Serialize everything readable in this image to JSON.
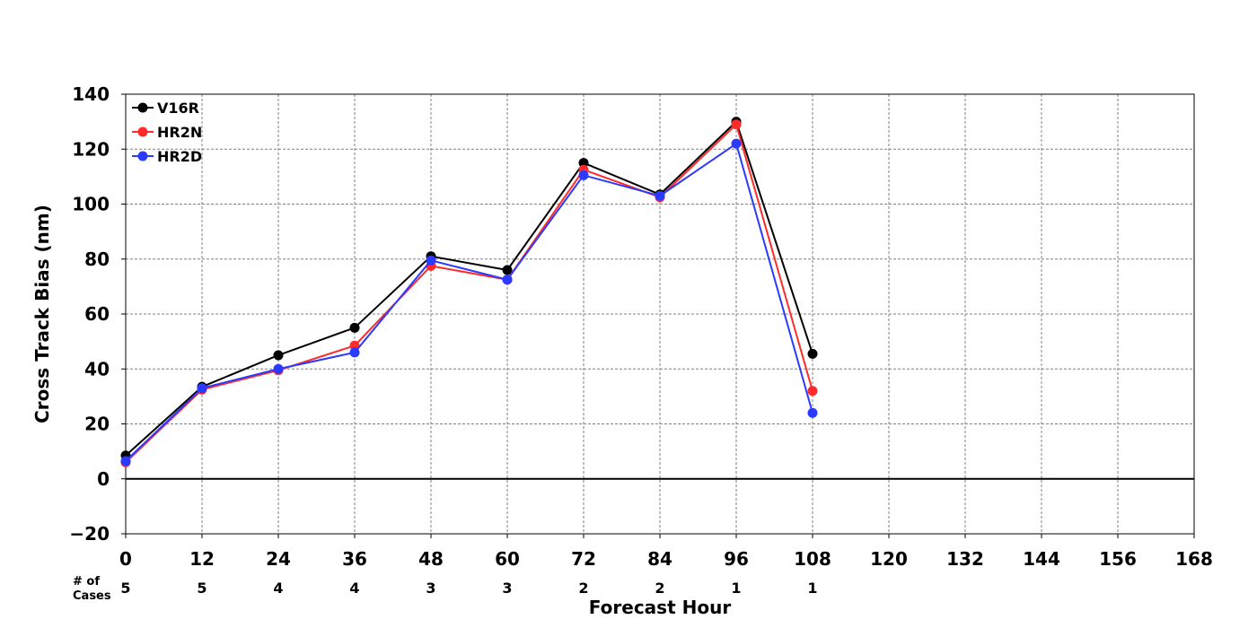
{
  "chart_data": {
    "type": "line",
    "title": "",
    "xlabel": "Forecast Hour",
    "ylabel": "Cross Track Bias (nm)",
    "xlim": [
      0,
      168
    ],
    "ylim": [
      -20,
      140
    ],
    "x_ticks": [
      0,
      12,
      24,
      36,
      48,
      60,
      72,
      84,
      96,
      108,
      120,
      132,
      144,
      156,
      168
    ],
    "y_ticks": [
      -20,
      0,
      20,
      40,
      60,
      80,
      100,
      120,
      140
    ],
    "y_tick_labels": [
      "−20",
      "0",
      "20",
      "40",
      "60",
      "80",
      "100",
      "120",
      "140"
    ],
    "grid": true,
    "legend_position": "top-left",
    "x": [
      0,
      12,
      24,
      36,
      48,
      60,
      72,
      84,
      96,
      108
    ],
    "series": [
      {
        "name": "V16R",
        "color": "#000000",
        "values": [
          8.5,
          33.5,
          45,
          55,
          81,
          76,
          115,
          103.5,
          130,
          45.5
        ]
      },
      {
        "name": "HR2N",
        "color": "#ff2a2a",
        "values": [
          6,
          32.5,
          39.5,
          48.5,
          77.5,
          72.5,
          112.5,
          102.5,
          129,
          32
        ]
      },
      {
        "name": "HR2D",
        "color": "#2a3aff",
        "values": [
          6.5,
          33,
          40,
          46,
          79.5,
          72.5,
          110.5,
          103,
          122,
          24
        ]
      }
    ],
    "cases": {
      "label_line1": "# of",
      "label_line2": "Cases",
      "hours": [
        0,
        12,
        24,
        36,
        48,
        60,
        72,
        84,
        96,
        108
      ],
      "counts": [
        "5",
        "5",
        "4",
        "4",
        "3",
        "3",
        "2",
        "2",
        "1",
        "1"
      ]
    }
  }
}
